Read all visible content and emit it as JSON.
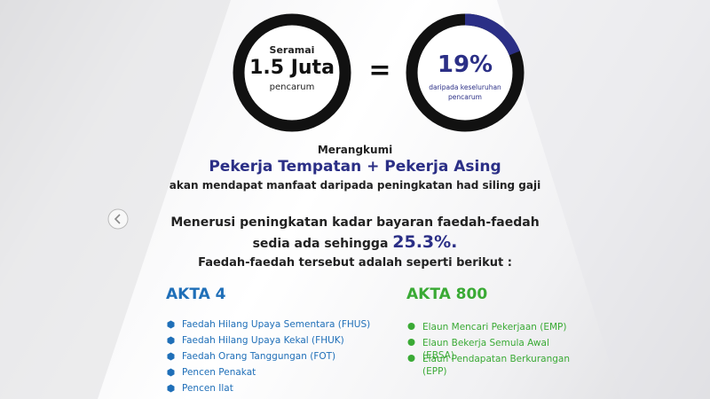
{
  "stats": {
    "left": {
      "top": "Seramai",
      "main": "1.5 Juta",
      "bottom": "pencarum"
    },
    "equals": "=",
    "right": {
      "percent": {
        "value": 19,
        "label": "19%"
      },
      "bottom_line1": "daripada keseluruhan",
      "bottom_line2": "pencarum"
    }
  },
  "summary": {
    "intro": "Merangkumi",
    "headline": "Pekerja Tempatan + Pekerja Asing",
    "note": "akan mendapat manfaat daripada peningkatan had siling gaji"
  },
  "increase": {
    "line1": "Menerusi peningkatan kadar bayaran faedah-faedah",
    "line2": "sedia ada sehingga",
    "rate": "25.3%.",
    "line3": "Faedah-faedah tersebut adalah seperti berikut :"
  },
  "columns": [
    {
      "title": "AKTA 4",
      "items": [
        "Faedah Hilang Upaya Sementara (FHUS)",
        "Faedah Hilang Upaya Kekal (FHUK)",
        "Faedah Orang Tanggungan (FOT)",
        "Pencen Penakat",
        "Pencen Ilat"
      ]
    },
    {
      "title": "AKTA 800",
      "items": [
        "Elaun Mencari Pekerjaan (EMP)",
        "Elaun Bekerja Semula Awal (EBSA)",
        "Elaun Pendapatan Berkurangan (EPP)"
      ]
    }
  ]
}
